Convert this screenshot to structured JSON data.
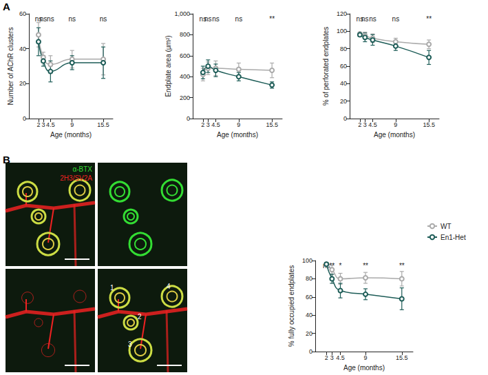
{
  "panel_labels": [
    "A",
    "B"
  ],
  "image": {
    "stains": [
      {
        "label": "α-BTX",
        "color": "#33dd33"
      },
      {
        "label": "2H3/SV2A",
        "color": "#ee2222"
      }
    ],
    "endplate_numbers": [
      "1",
      "2",
      "3",
      "4"
    ]
  },
  "chart_data": [
    {
      "type": "line",
      "ylabel": "Number of AChR clusters",
      "xlabel": "Age (months)",
      "x": [
        2,
        3,
        4.5,
        9,
        15.5
      ],
      "xlim": [
        0,
        17.5
      ],
      "xticks": [
        2,
        3,
        4.5,
        9,
        15.5
      ],
      "ylim": [
        0,
        60
      ],
      "yticks": [
        0,
        20,
        40,
        60
      ],
      "grid": false,
      "annotations": [
        "ns",
        "ns",
        "ns",
        "ns",
        "ns"
      ],
      "series": [
        {
          "name": "WT",
          "color": "#aaaaaa",
          "marker": "open_circle",
          "values": [
            48,
            35,
            31,
            34,
            34
          ],
          "errors": [
            7,
            3,
            5,
            5,
            9
          ]
        },
        {
          "name": "En1-Het",
          "color": "#1d5c57",
          "marker": "open_circle",
          "values": [
            44,
            33,
            27,
            32,
            32
          ],
          "errors": [
            8,
            3,
            6,
            4,
            9
          ]
        }
      ]
    },
    {
      "type": "line",
      "ylabel": "Endplate area (μm²)",
      "xlabel": "Age (months)",
      "x": [
        2,
        3,
        4.5,
        9,
        15.5
      ],
      "xlim": [
        0,
        17.5
      ],
      "xticks": [
        2,
        3,
        4.5,
        9,
        15.5
      ],
      "ylim": [
        0,
        1000
      ],
      "yticks": [
        0,
        200,
        400,
        600,
        800,
        1000
      ],
      "grid": false,
      "annotations": [
        "ns",
        "ns",
        "ns",
        "ns",
        "**"
      ],
      "series": [
        {
          "name": "WT",
          "color": "#aaaaaa",
          "marker": "open_circle",
          "values": [
            420,
            480,
            480,
            470,
            460
          ],
          "errors": [
            60,
            60,
            70,
            60,
            70
          ]
        },
        {
          "name": "En1-Het",
          "color": "#1d5c57",
          "marker": "open_circle",
          "values": [
            440,
            500,
            460,
            400,
            320
          ],
          "errors": [
            60,
            60,
            60,
            40,
            30
          ]
        }
      ]
    },
    {
      "type": "line",
      "ylabel": "% of perforated endplates",
      "xlabel": "Age (months)",
      "x": [
        2,
        3,
        4.5,
        9,
        15.5
      ],
      "xlim": [
        0,
        17.5
      ],
      "xticks": [
        2,
        3,
        4.5,
        9,
        15.5
      ],
      "ylim": [
        0,
        120
      ],
      "yticks": [
        0,
        20,
        40,
        60,
        80,
        100,
        120
      ],
      "grid": false,
      "annotations": [
        "ns",
        "ns",
        "ns",
        "ns",
        "**"
      ],
      "series": [
        {
          "name": "WT",
          "color": "#aaaaaa",
          "marker": "open_circle",
          "values": [
            97,
            95,
            92,
            88,
            85
          ],
          "errors": [
            2,
            4,
            5,
            4,
            5
          ]
        },
        {
          "name": "En1-Het",
          "color": "#1d5c57",
          "marker": "open_circle",
          "values": [
            96,
            93,
            90,
            83,
            70
          ],
          "errors": [
            2,
            5,
            6,
            5,
            8
          ]
        }
      ]
    },
    {
      "type": "line",
      "ylabel": "% fully occupied endplates",
      "xlabel": "Age (months)",
      "x": [
        2,
        3,
        4.5,
        9,
        15.5
      ],
      "xlim": [
        0,
        17.5
      ],
      "xticks": [
        2,
        3,
        4.5,
        9,
        15.5
      ],
      "ylim": [
        0,
        100
      ],
      "yticks": [
        0,
        20,
        40,
        60,
        80,
        100
      ],
      "grid": false,
      "legend": "right",
      "annotations": [
        "ns",
        "**",
        "*",
        "**",
        "**"
      ],
      "series": [
        {
          "name": "WT",
          "color": "#aaaaaa",
          "marker": "open_circle",
          "values": [
            96,
            90,
            80,
            81,
            80
          ],
          "errors": [
            2,
            5,
            6,
            6,
            8
          ]
        },
        {
          "name": "En1-Het",
          "color": "#1d5c57",
          "marker": "open_circle",
          "values": [
            96,
            80,
            67,
            63,
            58
          ],
          "errors": [
            2,
            5,
            8,
            6,
            12
          ]
        }
      ]
    }
  ]
}
